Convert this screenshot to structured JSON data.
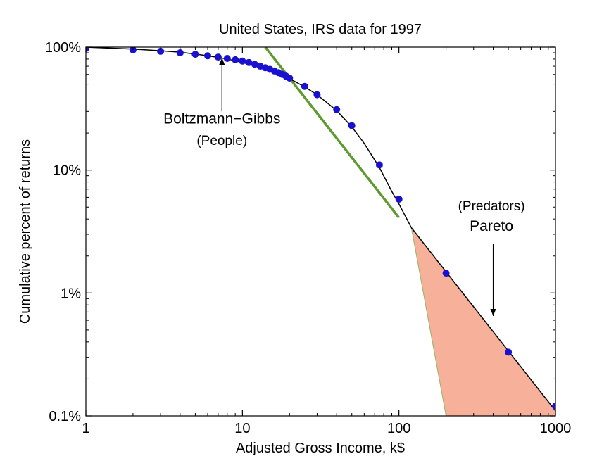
{
  "chart_data": {
    "type": "scatter",
    "title": "United States, IRS data for 1997",
    "xlabel": "Adjusted Gross Income, k$",
    "ylabel": "Cumulative percent of returns",
    "x_scale": "log",
    "y_scale": "log",
    "xlim": [
      1,
      1000
    ],
    "ylim": [
      0.1,
      100
    ],
    "x_ticks": [
      {
        "value": 1,
        "label": "1"
      },
      {
        "value": 10,
        "label": "10"
      },
      {
        "value": 100,
        "label": "100"
      },
      {
        "value": 1000,
        "label": "1000"
      }
    ],
    "y_ticks": [
      {
        "value": 0.1,
        "label": "0.1%"
      },
      {
        "value": 1,
        "label": "1%"
      },
      {
        "value": 10,
        "label": "10%"
      },
      {
        "value": 100,
        "label": "100%"
      }
    ],
    "grid": false,
    "points": {
      "color": "#1a10d0",
      "x": [
        1,
        2,
        3,
        4,
        5,
        6,
        7,
        8,
        9,
        10,
        11,
        12,
        13,
        14,
        15,
        16,
        17,
        18,
        19,
        20,
        25,
        30,
        40,
        50,
        75,
        100,
        200,
        500,
        1000
      ],
      "y": [
        97.5,
        95,
        92.5,
        90,
        87.5,
        85,
        83,
        81,
        79,
        77,
        75,
        72.5,
        70,
        68,
        66,
        64,
        62,
        60,
        58,
        56,
        48,
        41,
        31,
        23,
        11,
        5.8,
        1.45,
        0.33,
        0.12
      ]
    },
    "fit_curve": {
      "color": "#000000",
      "x": [
        1,
        2,
        3,
        4,
        5,
        6,
        7,
        8,
        9,
        10,
        12,
        14,
        16,
        18,
        20,
        25,
        30,
        40,
        50,
        60,
        75,
        90,
        100,
        120
      ],
      "y": [
        100,
        96.5,
        93.5,
        91,
        88,
        85,
        82.5,
        80,
        77.5,
        75,
        70.5,
        66,
        62,
        58.5,
        55.5,
        47.5,
        41,
        30.5,
        22.5,
        16.5,
        10.5,
        6.7,
        5.3,
        3.4
      ]
    },
    "boltzmann_line": {
      "color": "#5e9a2e",
      "x": [
        14,
        100
      ],
      "y": [
        100,
        4.1
      ]
    },
    "pareto_line": {
      "color": "#000000",
      "x": [
        120,
        1000
      ],
      "y": [
        3.4,
        0.11
      ]
    },
    "pareto_region": {
      "fill": "#f7b09a",
      "vertices": [
        [
          120,
          3.4
        ],
        [
          200,
          0.1
        ],
        [
          1000,
          0.1
        ],
        [
          1000,
          0.11
        ]
      ]
    },
    "annotations": [
      {
        "text": "Boltzmann−Gibbs",
        "size": "big",
        "x": 7.4,
        "y": 24
      },
      {
        "text": "(People)",
        "size": "normal",
        "x": 7.4,
        "y": 16
      },
      {
        "text": "(Predators)",
        "size": "normal",
        "x": 390,
        "y": 4.7
      },
      {
        "text": "Pareto",
        "size": "big",
        "x": 390,
        "y": 3.2
      }
    ],
    "arrows": [
      {
        "name": "boltzmann-arrow",
        "direction": "up",
        "x": 7.4,
        "from_y": 30,
        "to_y": 82
      },
      {
        "name": "pareto-arrow",
        "direction": "down",
        "x": 400,
        "from_y": 2.5,
        "to_y": 0.65
      }
    ]
  }
}
